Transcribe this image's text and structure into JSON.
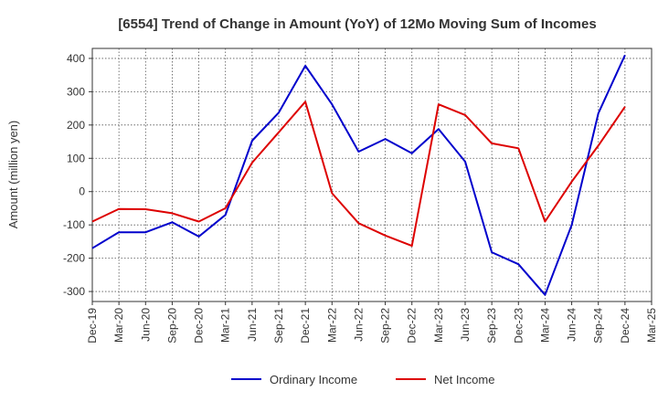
{
  "chart_data": {
    "type": "line",
    "title": "[6554]  Trend of Change in Amount (YoY) of 12Mo Moving Sum of Incomes",
    "xlabel": "",
    "ylabel": "Amount (million yen)",
    "ylim": [
      -330,
      430
    ],
    "yticks": [
      400,
      300,
      200,
      100,
      0,
      -100,
      -200,
      -300
    ],
    "grid": true,
    "legend_position": "bottom-center",
    "categories": [
      "Dec-19",
      "Mar-20",
      "Jun-20",
      "Sep-20",
      "Dec-20",
      "Mar-21",
      "Jun-21",
      "Sep-21",
      "Dec-21",
      "Mar-22",
      "Jun-22",
      "Sep-22",
      "Dec-22",
      "Mar-23",
      "Jun-23",
      "Sep-23",
      "Dec-23",
      "Mar-24",
      "Jun-24",
      "Sep-24",
      "Dec-24",
      "Mar-25"
    ],
    "series": [
      {
        "name": "Ordinary Income",
        "color": "#0000cc",
        "values": [
          -170,
          -122,
          -122,
          -92,
          -135,
          -70,
          153,
          237,
          378,
          262,
          120,
          158,
          115,
          188,
          90,
          -182,
          -218,
          -310,
          -100,
          235,
          410,
          null
        ]
      },
      {
        "name": "Net Income",
        "color": "#dd0000",
        "values": [
          -90,
          -52,
          -53,
          -65,
          -90,
          -50,
          87,
          178,
          270,
          -5,
          -95,
          -132,
          -163,
          262,
          230,
          145,
          130,
          -90,
          30,
          138,
          255,
          null
        ]
      }
    ]
  }
}
